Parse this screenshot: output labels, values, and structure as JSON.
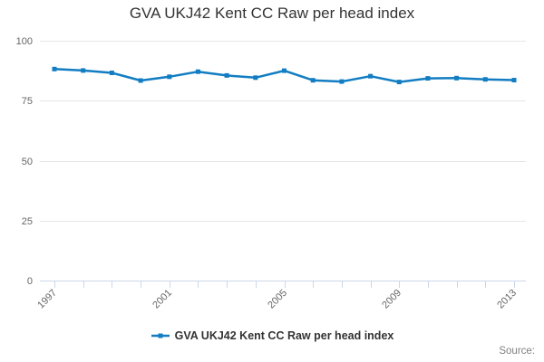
{
  "title": "GVA UKJ42 Kent CC Raw per head index",
  "legend": {
    "label": "GVA UKJ42 Kent CC Raw per head index"
  },
  "source_label": "Source:",
  "colors": {
    "series": "#127dc2",
    "gridline": "#e6e6e6",
    "axis_line": "#ccd6eb",
    "tick": "#ccd6eb",
    "axis_label": "#666666",
    "title": "#333333",
    "legend_text": "#333333",
    "source_text": "#808080",
    "background": "#ffffff"
  },
  "chart_data": {
    "type": "line",
    "title": "GVA UKJ42 Kent CC Raw per head index",
    "x": [
      1997,
      1998,
      1999,
      2000,
      2001,
      2002,
      2003,
      2004,
      2005,
      2006,
      2007,
      2008,
      2009,
      2010,
      2011,
      2012,
      2013
    ],
    "series": [
      {
        "name": "GVA UKJ42 Kent CC Raw per head index",
        "values": [
          88.2,
          87.6,
          86.6,
          83.4,
          85.0,
          87.1,
          85.5,
          84.6,
          87.5,
          83.5,
          83.0,
          85.2,
          82.8,
          84.3,
          84.4,
          83.9,
          83.6
        ]
      }
    ],
    "xlabel": "",
    "ylabel": "",
    "ylim": [
      0,
      100
    ],
    "yticks": [
      0,
      25,
      50,
      75,
      100
    ],
    "xtick_labels_shown": [
      "1997",
      "2001",
      "2005",
      "2009",
      "2013"
    ],
    "xtick_label_rotation": -45,
    "grid": true,
    "legend_position": "bottom",
    "marker": "square"
  }
}
